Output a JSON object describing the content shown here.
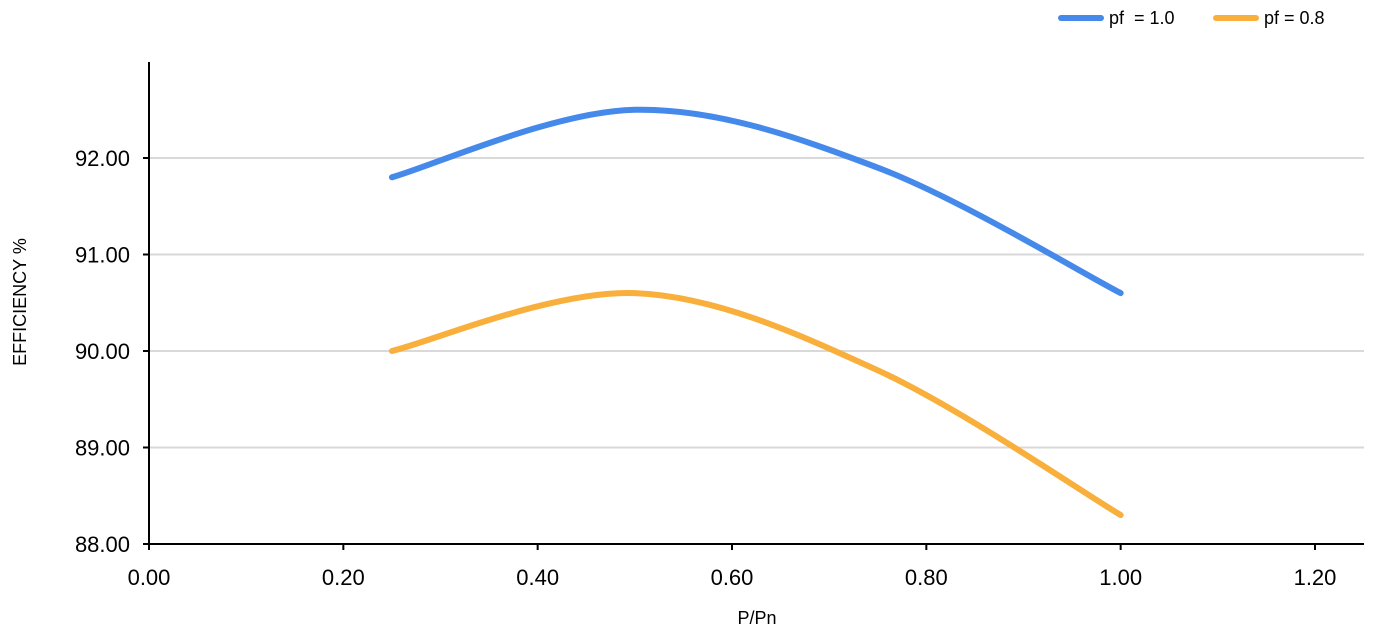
{
  "chart_data": {
    "type": "line",
    "title": "",
    "xlabel": "P/Pn",
    "ylabel": "EFFICIENCY %",
    "xlim": [
      0,
      1.2
    ],
    "ylim": [
      88,
      93
    ],
    "x_ticks": [
      "0.00",
      "0.20",
      "0.40",
      "0.60",
      "0.80",
      "1.00",
      "1.20"
    ],
    "y_ticks": [
      "88.00",
      "89.00",
      "90.00",
      "91.00",
      "92.00"
    ],
    "grid": "horizontal",
    "legend_position": "top-right",
    "series": [
      {
        "name": "pf  = 1.0",
        "color": "#4589EA",
        "x": [
          0.25,
          0.5,
          0.75,
          1.0
        ],
        "y": [
          91.8,
          92.5,
          91.9,
          90.6
        ]
      },
      {
        "name": "pf = 0.8",
        "color": "#F9AF3B",
        "x": [
          0.25,
          0.5,
          0.75,
          1.0
        ],
        "y": [
          90.0,
          90.6,
          89.8,
          88.3
        ]
      }
    ]
  }
}
